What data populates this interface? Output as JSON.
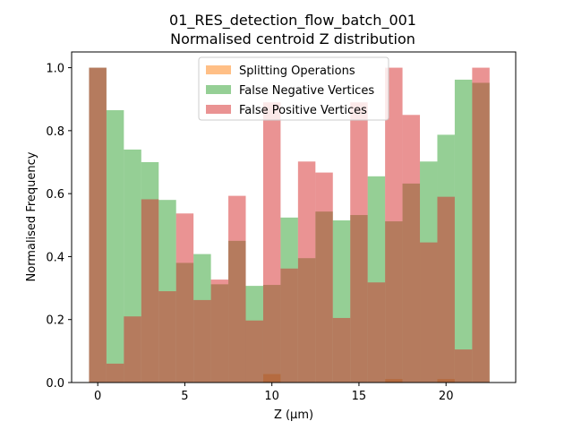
{
  "chart_data": {
    "type": "bar",
    "title": "01_RES_detection_flow_batch_001",
    "subtitle": "Normalised centroid Z distribution",
    "xlabel": "Z (μm)",
    "ylabel": "Normalised Frequency",
    "xlim": [
      -1.5,
      24.0
    ],
    "ylim": [
      0,
      1.05
    ],
    "xticks": [
      0,
      5,
      10,
      15,
      20
    ],
    "yticks": [
      0.0,
      0.2,
      0.4,
      0.6,
      0.8,
      1.0
    ],
    "xtick_labels": [
      "0",
      "5",
      "10",
      "15",
      "20"
    ],
    "ytick_labels": [
      "0.0",
      "0.2",
      "0.4",
      "0.6",
      "0.8",
      "1.0"
    ],
    "bin_width": 1,
    "bin_starts": [
      -0.5,
      0.5,
      1.5,
      2.5,
      3.5,
      4.5,
      5.5,
      6.5,
      7.5,
      8.5,
      9.5,
      10.5,
      11.5,
      12.5,
      13.5,
      14.5,
      15.5,
      16.5,
      17.5,
      18.5,
      19.5,
      20.5,
      21.5
    ],
    "grid": false,
    "legend_position": "top-center",
    "series": [
      {
        "name": "Splitting Operations",
        "color": "#ff7f0e",
        "alpha": 0.5,
        "values": [
          0,
          0,
          0,
          0,
          0,
          0,
          0,
          0,
          0,
          0,
          0.027,
          0,
          0,
          0,
          0,
          0,
          0,
          0.011,
          0,
          0,
          0.011,
          0,
          0
        ]
      },
      {
        "name": "False Negative Vertices",
        "color": "#2ca02c",
        "alpha": 0.5,
        "values": [
          1.0,
          0.865,
          0.74,
          0.7,
          0.58,
          0.38,
          0.408,
          0.312,
          0.45,
          0.307,
          0.31,
          0.524,
          0.395,
          0.543,
          0.515,
          0.532,
          0.655,
          0.512,
          0.632,
          0.702,
          0.787,
          0.962,
          0.952
        ]
      },
      {
        "name": "False Positive Vertices",
        "color": "#d62728",
        "alpha": 0.5,
        "values": [
          1.0,
          0.06,
          0.21,
          0.582,
          0.29,
          0.537,
          0.262,
          0.327,
          0.593,
          0.197,
          0.89,
          0.362,
          0.702,
          0.667,
          0.205,
          0.89,
          0.318,
          1.0,
          0.85,
          0.445,
          0.59,
          0.105,
          1.0
        ]
      }
    ]
  }
}
